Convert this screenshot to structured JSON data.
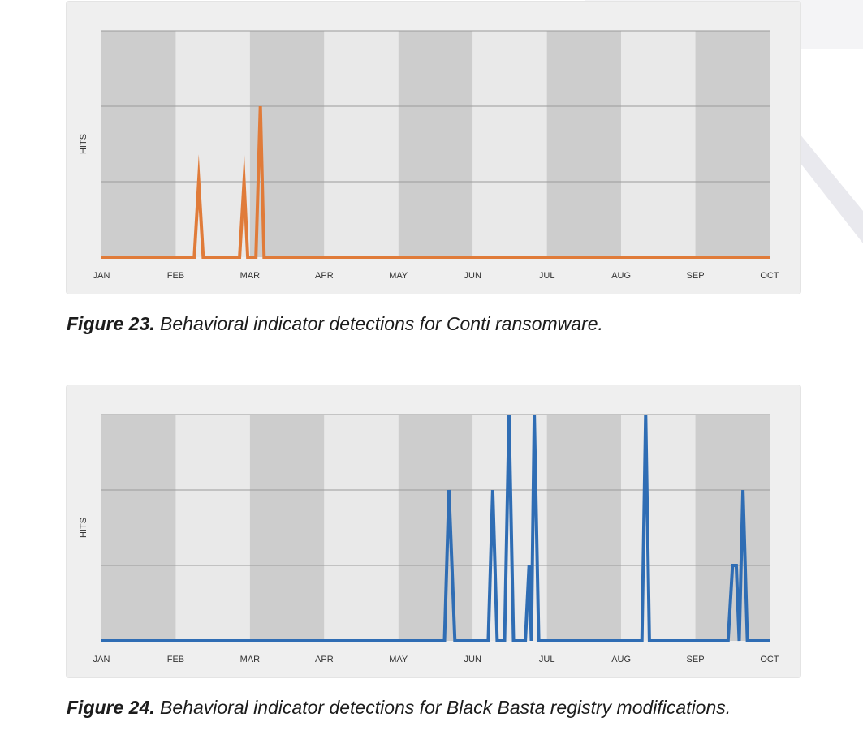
{
  "chart_data": [
    {
      "type": "line",
      "caption_label": "Figure 23.",
      "caption_text": " Behavioral indicator detections for Conti ransomware.",
      "ylabel": "HITS",
      "categories": [
        "JAN",
        "FEB",
        "MAR",
        "APR",
        "MAY",
        "JUN",
        "JUL",
        "AUG",
        "SEP",
        "OCT"
      ],
      "xlim": [
        0,
        9
      ],
      "ylim": [
        0,
        3
      ],
      "grid": true,
      "color": "#e07b39",
      "series": [
        {
          "points": [
            [
              0,
              0
            ],
            [
              1.25,
              0
            ],
            [
              1.31,
              1
            ],
            [
              1.37,
              0
            ],
            [
              1.86,
              0
            ],
            [
              1.92,
              1
            ],
            [
              1.97,
              0
            ],
            [
              2.08,
              0
            ],
            [
              2.14,
              2
            ],
            [
              2.19,
              0
            ],
            [
              9,
              0
            ]
          ]
        }
      ]
    },
    {
      "type": "line",
      "caption_label": "Figure 24.",
      "caption_text": " Behavioral indicator detections for Black Basta registry modifications.",
      "ylabel": "HITS",
      "categories": [
        "JAN",
        "FEB",
        "MAR",
        "APR",
        "MAY",
        "JUN",
        "JUL",
        "AUG",
        "SEP",
        "OCT"
      ],
      "xlim": [
        0,
        9
      ],
      "ylim": [
        0,
        3
      ],
      "grid": true,
      "color": "#2f6db4",
      "series": [
        {
          "points": [
            [
              0,
              0
            ],
            [
              4.62,
              0
            ],
            [
              4.68,
              2
            ],
            [
              4.76,
              0
            ],
            [
              5.21,
              0
            ],
            [
              5.27,
              2
            ],
            [
              5.33,
              0
            ],
            [
              5.43,
              0
            ],
            [
              5.49,
              3
            ],
            [
              5.55,
              0
            ],
            [
              5.71,
              0
            ],
            [
              5.76,
              1
            ],
            [
              5.79,
              0
            ],
            [
              5.83,
              3
            ],
            [
              5.89,
              0
            ],
            [
              7.28,
              0
            ],
            [
              7.33,
              3
            ],
            [
              7.38,
              0
            ],
            [
              8.44,
              0
            ],
            [
              8.5,
              1
            ],
            [
              8.55,
              1
            ],
            [
              8.59,
              0
            ],
            [
              8.64,
              2
            ],
            [
              8.7,
              0
            ],
            [
              9,
              0
            ]
          ]
        }
      ]
    }
  ]
}
